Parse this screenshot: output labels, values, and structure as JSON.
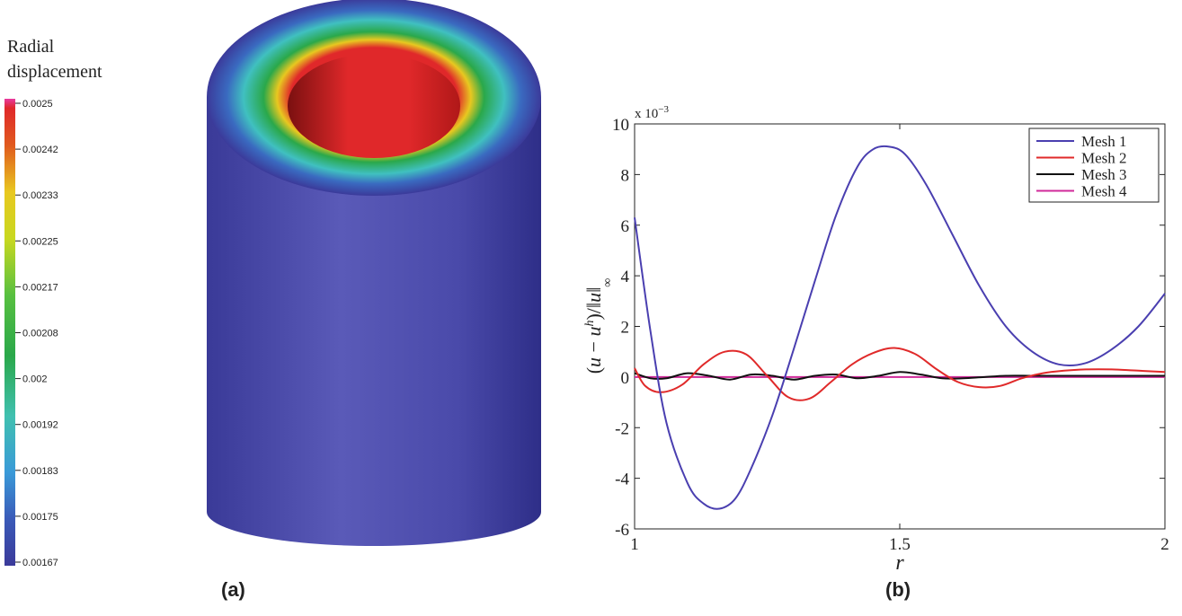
{
  "figure_a": {
    "title_line1": "Radial",
    "title_line2": "displacement",
    "panel_label": "(a)",
    "colorbar_ticks": [
      "0.0025",
      "0.00242",
      "0.00233",
      "0.00225",
      "0.00217",
      "0.00208",
      "0.002",
      "0.00192",
      "0.00183",
      "0.00175",
      "0.00167"
    ],
    "colors": {
      "max": "#e0282a",
      "mid": "#2aa84a",
      "min": "#3b3a9a",
      "top_pink": "#e0409a"
    }
  },
  "chart_data": {
    "type": "line",
    "panel_label": "(b)",
    "xlabel": "r",
    "ylabel": "(u − u^h)/‖u‖∞",
    "scale_label": "x 10^-3",
    "xlim": [
      1,
      2
    ],
    "ylim": [
      -6,
      10
    ],
    "xticks": [
      "1",
      "1.5",
      "2"
    ],
    "yticks": [
      "-6",
      "-4",
      "-2",
      "0",
      "2",
      "4",
      "6",
      "8",
      "10"
    ],
    "legend_position": "top-right",
    "series": [
      {
        "name": "Mesh 1",
        "color": "#4a3fb0",
        "x": [
          1.0,
          1.03,
          1.06,
          1.1,
          1.13,
          1.16,
          1.19,
          1.22,
          1.26,
          1.3,
          1.34,
          1.38,
          1.42,
          1.45,
          1.48,
          1.51,
          1.55,
          1.6,
          1.65,
          1.7,
          1.75,
          1.8,
          1.85,
          1.9,
          1.95,
          2.0
        ],
        "y": [
          6.3,
          1.8,
          -1.8,
          -4.2,
          -5.0,
          -5.2,
          -4.8,
          -3.6,
          -1.5,
          1.1,
          3.8,
          6.4,
          8.3,
          9.0,
          9.1,
          8.8,
          7.6,
          5.6,
          3.6,
          2.0,
          1.0,
          0.5,
          0.55,
          1.1,
          2.0,
          3.3
        ]
      },
      {
        "name": "Mesh 2",
        "color": "#e02a2a",
        "x": [
          1.0,
          1.02,
          1.05,
          1.09,
          1.13,
          1.17,
          1.21,
          1.25,
          1.29,
          1.33,
          1.37,
          1.41,
          1.45,
          1.49,
          1.53,
          1.57,
          1.61,
          1.65,
          1.69,
          1.73,
          1.77,
          1.81,
          1.85,
          1.9,
          1.95,
          2.0
        ],
        "y": [
          0.35,
          -0.35,
          -0.6,
          -0.3,
          0.5,
          1.0,
          0.9,
          0.05,
          -0.8,
          -0.85,
          -0.2,
          0.5,
          0.95,
          1.15,
          0.9,
          0.3,
          -0.2,
          -0.4,
          -0.35,
          -0.05,
          0.15,
          0.25,
          0.3,
          0.3,
          0.25,
          0.2
        ]
      },
      {
        "name": "Mesh 3",
        "color": "#111111",
        "x": [
          1.0,
          1.03,
          1.06,
          1.1,
          1.14,
          1.18,
          1.22,
          1.26,
          1.3,
          1.34,
          1.38,
          1.42,
          1.46,
          1.5,
          1.54,
          1.58,
          1.62,
          1.66,
          1.7,
          1.75,
          1.8,
          1.85,
          1.9,
          1.95,
          2.0
        ],
        "y": [
          0.15,
          -0.05,
          -0.05,
          0.15,
          0.05,
          -0.1,
          0.1,
          0.05,
          -0.1,
          0.05,
          0.1,
          -0.05,
          0.05,
          0.2,
          0.1,
          -0.05,
          -0.05,
          0.0,
          0.05,
          0.05,
          0.05,
          0.05,
          0.05,
          0.05,
          0.05
        ]
      },
      {
        "name": "Mesh 4",
        "color": "#d02a9a",
        "x": [
          1.0,
          1.1,
          1.2,
          1.3,
          1.4,
          1.5,
          1.6,
          1.7,
          1.8,
          1.9,
          2.0
        ],
        "y": [
          0.0,
          0.0,
          0.0,
          0.0,
          0.0,
          0.0,
          0.0,
          0.0,
          0.0,
          0.0,
          0.0
        ]
      }
    ]
  }
}
